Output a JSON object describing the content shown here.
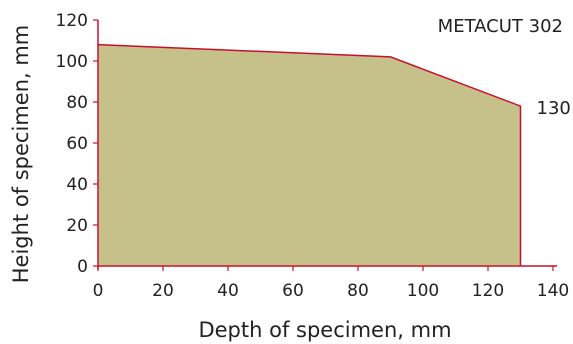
{
  "chart_data": {
    "type": "area",
    "title": "METACUT 302",
    "xlabel": "Depth of specimen, mm",
    "ylabel": "Height of specimen, mm",
    "xlim": [
      0,
      140
    ],
    "ylim": [
      0,
      120
    ],
    "x_ticks": [
      0,
      20,
      40,
      60,
      80,
      100,
      120,
      140
    ],
    "y_ticks": [
      0,
      20,
      40,
      60,
      80,
      100,
      120
    ],
    "series": [
      {
        "x": [
          0,
          90,
          130,
          130
        ],
        "y": [
          108,
          102,
          78,
          0
        ]
      }
    ],
    "annotations": [
      {
        "text": "130",
        "x": 130,
        "y": 78
      }
    ],
    "grid": false,
    "colors": {
      "fill": "#c6c18a",
      "outline": "#c8102e",
      "axis": "#c8102e",
      "text": "#222222"
    }
  }
}
